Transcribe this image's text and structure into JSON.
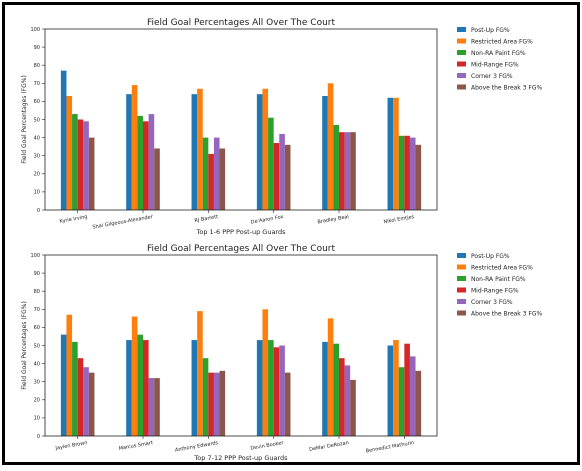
{
  "chart_data": [
    {
      "type": "bar",
      "title": "Field Goal Percentages All Over The Court",
      "xlabel": "Top 1-6 PPP Post-up Guards",
      "ylabel": "Field Goal Percentages (FG%)",
      "ylim": [
        0,
        100
      ],
      "yticks": [
        0,
        10,
        20,
        30,
        40,
        50,
        60,
        70,
        80,
        90,
        100
      ],
      "grid": false,
      "legend_position": "outside-right",
      "categories": [
        "Kyrie Irving",
        "Shai Gilgeous-Alexander",
        "RJ Barrett",
        "De'Aaron Fox",
        "Bradley Beal",
        "Nikol Emtjes"
      ],
      "series": [
        {
          "name": "Post-Up FG%",
          "color": "#1f77b4",
          "values": [
            77,
            64,
            64,
            64,
            63,
            62
          ]
        },
        {
          "name": "Restricted Area FG%",
          "color": "#ff7f0e",
          "values": [
            63,
            69,
            67,
            67,
            70,
            62
          ]
        },
        {
          "name": "Non-RA Paint FG%",
          "color": "#2ca02c",
          "values": [
            53,
            52,
            40,
            51,
            47,
            41
          ]
        },
        {
          "name": "Mid-Range FG%",
          "color": "#d62728",
          "values": [
            50,
            49,
            31,
            37,
            43,
            41
          ]
        },
        {
          "name": "Corner 3 FG%",
          "color": "#9467bd",
          "values": [
            49,
            53,
            40,
            42,
            43,
            40
          ]
        },
        {
          "name": "Above the Break 3 FG%",
          "color": "#8c564b",
          "values": [
            40,
            34,
            34,
            36,
            43,
            36
          ]
        }
      ]
    },
    {
      "type": "bar",
      "title": "Field Goal Percentages All Over The Court",
      "xlabel": "Top 7-12 PPP Post-up Guards",
      "ylabel": "Field Goal Percentages (FG%)",
      "ylim": [
        0,
        100
      ],
      "yticks": [
        0,
        10,
        20,
        30,
        40,
        50,
        60,
        70,
        80,
        90,
        100
      ],
      "grid": false,
      "legend_position": "outside-right",
      "categories": [
        "Jaylen Brown",
        "Marcus Smart",
        "Anthony Edwards",
        "Devin Booker",
        "DeMar DeRozan",
        "Bennedict Mathurin"
      ],
      "series": [
        {
          "name": "Post-Up FG%",
          "color": "#1f77b4",
          "values": [
            56,
            53,
            53,
            53,
            52,
            50
          ]
        },
        {
          "name": "Restricted Area FG%",
          "color": "#ff7f0e",
          "values": [
            67,
            66,
            69,
            70,
            65,
            53
          ]
        },
        {
          "name": "Non-RA Paint FG%",
          "color": "#2ca02c",
          "values": [
            52,
            56,
            43,
            53,
            51,
            38
          ]
        },
        {
          "name": "Mid-Range FG%",
          "color": "#d62728",
          "values": [
            43,
            53,
            35,
            49,
            43,
            51
          ]
        },
        {
          "name": "Corner 3 FG%",
          "color": "#9467bd",
          "values": [
            38,
            32,
            35,
            50,
            39,
            44
          ]
        },
        {
          "name": "Above the Break 3 FG%",
          "color": "#8c564b",
          "values": [
            35,
            32,
            36,
            35,
            31,
            36
          ]
        }
      ]
    }
  ]
}
